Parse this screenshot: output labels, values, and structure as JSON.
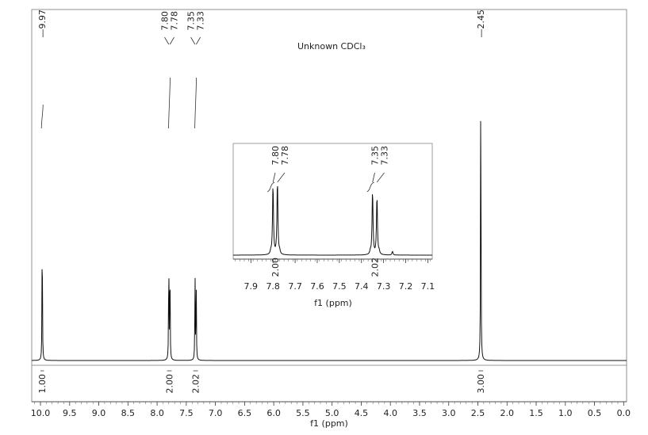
{
  "chart_data": {
    "type": "line",
    "description_note": "1H NMR spectrum",
    "annotation": "Unknown CDCl₃",
    "xlabel": "f1 (ppm)",
    "xlim": [
      10.15,
      -0.05
    ],
    "x_ticks": [
      "10.0",
      "9.5",
      "9.0",
      "8.5",
      "8.0",
      "7.5",
      "7.0",
      "6.5",
      "6.0",
      "5.5",
      "5.0",
      "4.5",
      "4.0",
      "3.5",
      "3.0",
      "2.5",
      "2.0",
      "1.5",
      "1.0",
      "0.5",
      "0.0"
    ],
    "peaks": [
      {
        "shift": 9.97,
        "intensity": 0.46
      },
      {
        "shift": 7.8,
        "intensity": 0.35
      },
      {
        "shift": 7.78,
        "intensity": 0.34
      },
      {
        "shift": 7.35,
        "intensity": 0.28
      },
      {
        "shift": 7.33,
        "intensity": 0.26
      },
      {
        "shift": 2.45,
        "intensity": 1.0
      }
    ],
    "peak_labels": [
      {
        "group": [
          "9.97"
        ],
        "shifts": [
          9.97
        ]
      },
      {
        "group": [
          "7.80",
          "7.78"
        ],
        "shifts": [
          7.8,
          7.78
        ]
      },
      {
        "group": [
          "7.35",
          "7.33"
        ],
        "shifts": [
          7.35,
          7.33
        ]
      },
      {
        "group": [
          "2.45"
        ],
        "shifts": [
          2.45
        ]
      }
    ],
    "integrals": [
      {
        "from": 10.0,
        "to": 9.94,
        "value": "1.00",
        "center": 9.97
      },
      {
        "from": 7.83,
        "to": 7.75,
        "value": "2.00",
        "center": 7.79
      },
      {
        "from": 7.38,
        "to": 7.3,
        "value": "2.02",
        "center": 7.34
      },
      {
        "from": 2.49,
        "to": 2.41,
        "value": "3.00",
        "center": 2.45
      }
    ],
    "inset": {
      "xlabel": "f1 (ppm)",
      "xlim": [
        7.98,
        7.08
      ],
      "x_ticks": [
        "7.9",
        "7.8",
        "7.7",
        "7.6",
        "7.5",
        "7.4",
        "7.3",
        "7.2",
        "7.1"
      ],
      "peak_labels": [
        {
          "group": [
            "7.80",
            "7.78"
          ],
          "shifts": [
            7.8,
            7.78
          ]
        },
        {
          "group": [
            "7.35",
            "7.33"
          ],
          "shifts": [
            7.35,
            7.33
          ]
        }
      ],
      "integrals": [
        {
          "value": "2.00",
          "center": 7.79
        },
        {
          "value": "2.02",
          "center": 7.34
        }
      ]
    }
  }
}
